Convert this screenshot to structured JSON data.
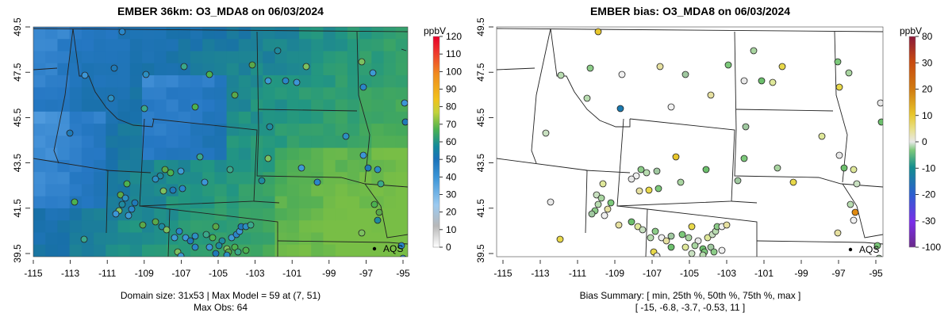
{
  "left_panel": {
    "title": "EMBER 36km: O3_MDA8 on 06/03/2024",
    "colorbar_unit": "ppbV",
    "colorbar_ticks": [
      "0",
      "10",
      "20",
      "30",
      "40",
      "50",
      "60",
      "70",
      "80",
      "90",
      "100",
      "110",
      "120"
    ],
    "x_ticks": [
      "-115",
      "-113",
      "-111",
      "-109",
      "-107",
      "-105",
      "-103",
      "-101",
      "-99",
      "-97",
      "-95"
    ],
    "y_ticks": [
      "39.5",
      "41.5",
      "43.5",
      "45.5",
      "47.5",
      "49.5"
    ],
    "site_label": "AQS",
    "footer_line1": "Domain size: 31x53 | Max Model = 59 at (7, 51)",
    "footer_line2": "Max Obs: 64"
  },
  "right_panel": {
    "title": "EMBER bias: O3_MDA8 on 06/03/2024",
    "colorbar_unit": "ppbV",
    "colorbar_ticks": [
      "-100",
      "-30",
      "-20",
      "-10",
      "0",
      "10",
      "20",
      "30",
      "80"
    ],
    "x_ticks": [
      "-115",
      "-113",
      "-111",
      "-109",
      "-107",
      "-105",
      "-103",
      "-101",
      "-99",
      "-97",
      "-95"
    ],
    "y_ticks": [
      "39.5",
      "41.5",
      "43.5",
      "45.5",
      "47.5",
      "49.5"
    ],
    "site_label": "AQS",
    "footer_line1": "Bias Summary: [ min, 25th %, 50th %, 75th %, max ]",
    "footer_line2": "[ -15,   -6.8,   -3.7,   -0.53,   11 ]"
  },
  "colors": {
    "model_low": "#5aa0e0",
    "model_mid": "#2b7fc8",
    "model_green": "#43a84a",
    "bias_neutral": "#e8e8e8",
    "bias_green": "#5bbf6a",
    "bias_yellow": "#e8d84a",
    "bias_orange": "#e08a10"
  }
}
